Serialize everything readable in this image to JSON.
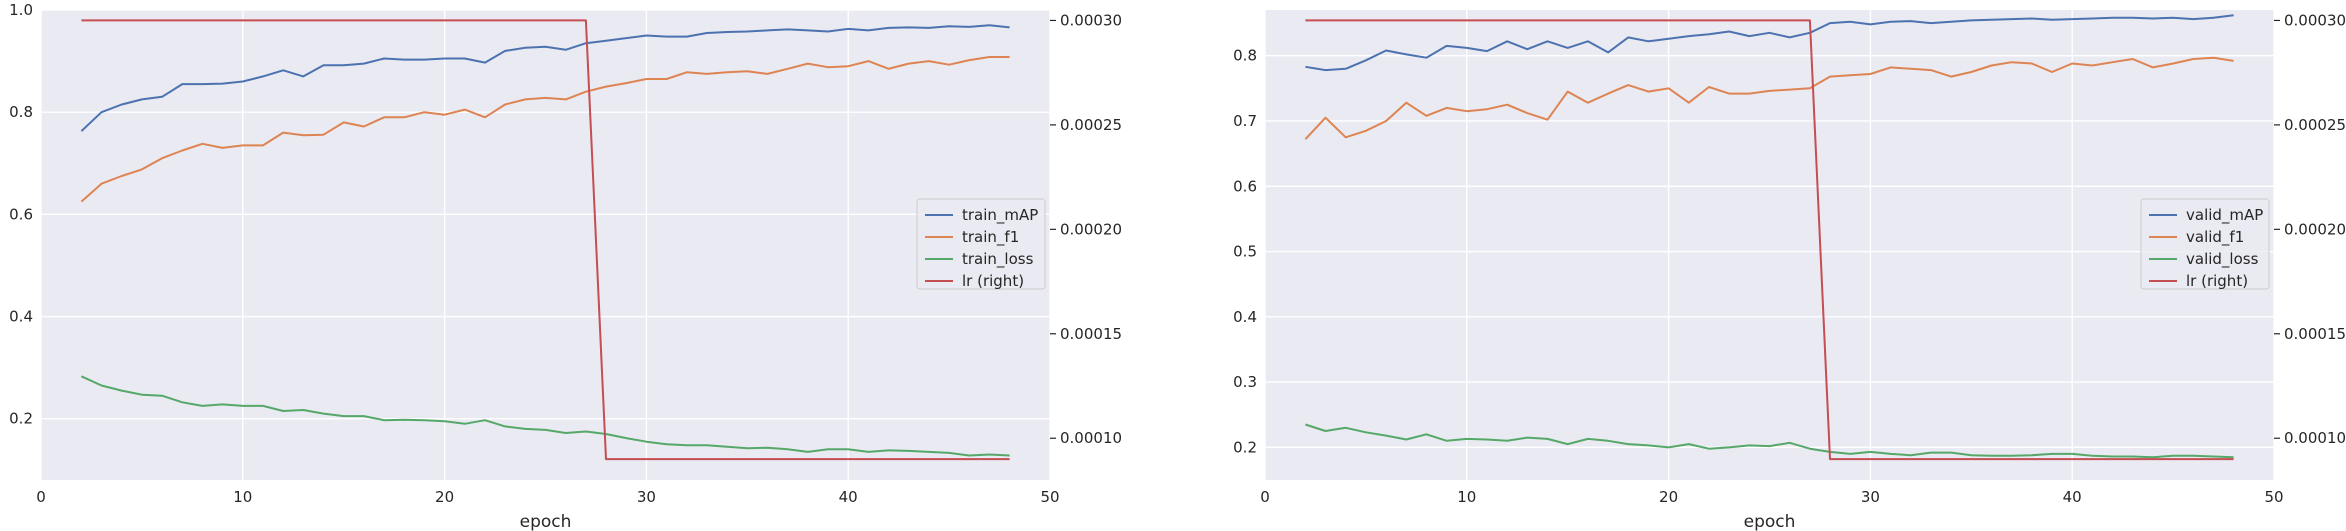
{
  "chart_data": [
    {
      "type": "line",
      "xlabel": "epoch",
      "xlim": [
        0,
        50
      ],
      "ylim": [
        0.08,
        1.0
      ],
      "ylim_right": [
        8e-05,
        0.000305
      ],
      "xticks": [
        0,
        10,
        20,
        30,
        40,
        50
      ],
      "yticks": [
        0.2,
        0.4,
        0.6,
        0.8,
        1.0
      ],
      "yticks_right": [
        0.0001,
        0.00015,
        0.0002,
        0.00025,
        0.0003
      ],
      "grid": true,
      "legend_position": "center-right",
      "x": [
        2,
        3,
        4,
        5,
        6,
        7,
        8,
        9,
        10,
        11,
        12,
        13,
        14,
        15,
        16,
        17,
        18,
        19,
        20,
        21,
        22,
        23,
        24,
        25,
        26,
        27,
        28,
        29,
        30,
        31,
        32,
        33,
        34,
        35,
        36,
        37,
        38,
        39,
        40,
        41,
        42,
        43,
        44,
        45,
        46,
        47,
        48
      ],
      "series": [
        {
          "name": "train_mAP",
          "axis": "left",
          "color": "#4c72b0",
          "values": [
            0.763,
            0.8,
            0.815,
            0.825,
            0.83,
            0.855,
            0.855,
            0.856,
            0.86,
            0.87,
            0.882,
            0.87,
            0.892,
            0.892,
            0.895,
            0.905,
            0.903,
            0.903,
            0.905,
            0.905,
            0.897,
            0.92,
            0.926,
            0.928,
            0.922,
            0.935,
            0.94,
            0.945,
            0.95,
            0.948,
            0.948,
            0.955,
            0.957,
            0.958,
            0.96,
            0.962,
            0.96,
            0.958,
            0.963,
            0.96,
            0.965,
            0.966,
            0.965,
            0.968,
            0.967,
            0.97,
            0.966
          ]
        },
        {
          "name": "train_f1",
          "axis": "left",
          "color": "#dd8452",
          "values": [
            0.625,
            0.66,
            0.675,
            0.688,
            0.71,
            0.725,
            0.738,
            0.73,
            0.735,
            0.735,
            0.76,
            0.755,
            0.756,
            0.78,
            0.772,
            0.79,
            0.79,
            0.8,
            0.795,
            0.805,
            0.79,
            0.815,
            0.825,
            0.828,
            0.825,
            0.84,
            0.85,
            0.857,
            0.865,
            0.865,
            0.878,
            0.875,
            0.878,
            0.88,
            0.875,
            0.885,
            0.895,
            0.888,
            0.89,
            0.9,
            0.885,
            0.895,
            0.9,
            0.893,
            0.902,
            0.908,
            0.908
          ]
        },
        {
          "name": "train_loss",
          "axis": "left",
          "color": "#55a868",
          "values": [
            0.283,
            0.265,
            0.255,
            0.247,
            0.245,
            0.232,
            0.225,
            0.228,
            0.225,
            0.225,
            0.215,
            0.217,
            0.21,
            0.205,
            0.205,
            0.197,
            0.198,
            0.197,
            0.195,
            0.19,
            0.197,
            0.185,
            0.18,
            0.178,
            0.172,
            0.175,
            0.17,
            0.162,
            0.155,
            0.15,
            0.148,
            0.148,
            0.145,
            0.142,
            0.143,
            0.14,
            0.135,
            0.14,
            0.14,
            0.135,
            0.138,
            0.137,
            0.135,
            0.133,
            0.128,
            0.13,
            0.128
          ]
        },
        {
          "name": "lr (right)",
          "axis": "right",
          "color": "#c44e52",
          "x": [
            2,
            27,
            28,
            48
          ],
          "values": [
            0.0003,
            0.0003,
            9e-05,
            9e-05
          ]
        }
      ]
    },
    {
      "type": "line",
      "xlabel": "epoch",
      "xlim": [
        0,
        50
      ],
      "ylim": [
        0.15,
        0.87
      ],
      "ylim_right": [
        8e-05,
        0.000305
      ],
      "xticks": [
        0,
        10,
        20,
        30,
        40,
        50
      ],
      "yticks": [
        0.2,
        0.3,
        0.4,
        0.5,
        0.6,
        0.7,
        0.8
      ],
      "yticks_right": [
        0.0001,
        0.00015,
        0.0002,
        0.00025,
        0.0003
      ],
      "grid": true,
      "legend_position": "center-right",
      "x": [
        2,
        3,
        4,
        5,
        6,
        7,
        8,
        9,
        10,
        11,
        12,
        13,
        14,
        15,
        16,
        17,
        18,
        19,
        20,
        21,
        22,
        23,
        24,
        25,
        26,
        27,
        28,
        29,
        30,
        31,
        32,
        33,
        34,
        35,
        36,
        37,
        38,
        39,
        40,
        41,
        42,
        43,
        44,
        45,
        46,
        47,
        48
      ],
      "series": [
        {
          "name": "valid_mAP",
          "axis": "left",
          "color": "#4c72b0",
          "values": [
            0.783,
            0.778,
            0.78,
            0.793,
            0.808,
            0.802,
            0.797,
            0.815,
            0.812,
            0.807,
            0.822,
            0.81,
            0.822,
            0.812,
            0.822,
            0.805,
            0.828,
            0.822,
            0.826,
            0.83,
            0.833,
            0.837,
            0.83,
            0.835,
            0.828,
            0.835,
            0.85,
            0.852,
            0.848,
            0.852,
            0.853,
            0.85,
            0.852,
            0.854,
            0.855,
            0.856,
            0.857,
            0.855,
            0.856,
            0.857,
            0.858,
            0.858,
            0.857,
            0.858,
            0.856,
            0.858,
            0.862
          ]
        },
        {
          "name": "valid_f1",
          "axis": "left",
          "color": "#dd8452",
          "values": [
            0.672,
            0.705,
            0.675,
            0.685,
            0.7,
            0.728,
            0.708,
            0.72,
            0.715,
            0.718,
            0.725,
            0.712,
            0.702,
            0.745,
            0.728,
            0.742,
            0.755,
            0.745,
            0.75,
            0.728,
            0.752,
            0.742,
            0.742,
            0.746,
            0.748,
            0.75,
            0.768,
            0.77,
            0.772,
            0.782,
            0.78,
            0.778,
            0.768,
            0.775,
            0.785,
            0.79,
            0.788,
            0.775,
            0.788,
            0.785,
            0.79,
            0.795,
            0.782,
            0.788,
            0.795,
            0.797,
            0.792
          ]
        },
        {
          "name": "valid_loss",
          "axis": "left",
          "color": "#55a868",
          "values": [
            0.235,
            0.225,
            0.23,
            0.223,
            0.218,
            0.212,
            0.22,
            0.21,
            0.213,
            0.212,
            0.21,
            0.215,
            0.213,
            0.205,
            0.213,
            0.21,
            0.205,
            0.203,
            0.2,
            0.205,
            0.198,
            0.2,
            0.203,
            0.202,
            0.207,
            0.198,
            0.193,
            0.19,
            0.193,
            0.19,
            0.188,
            0.192,
            0.192,
            0.188,
            0.187,
            0.187,
            0.188,
            0.19,
            0.19,
            0.187,
            0.186,
            0.186,
            0.185,
            0.187,
            0.187,
            0.186,
            0.185
          ]
        },
        {
          "name": "lr (right)",
          "axis": "right",
          "color": "#c44e52",
          "x": [
            2,
            27,
            28,
            48
          ],
          "values": [
            0.0003,
            0.0003,
            9e-05,
            9e-05
          ]
        }
      ]
    }
  ]
}
